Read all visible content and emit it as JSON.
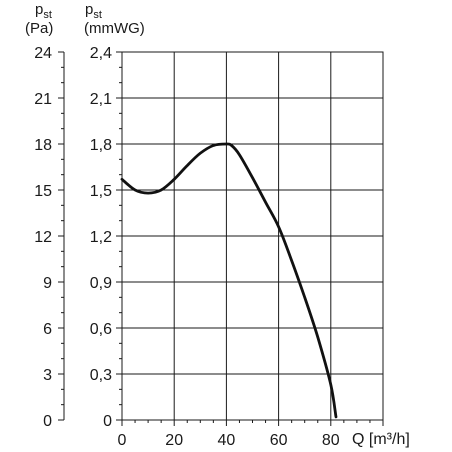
{
  "chart_data": {
    "type": "line",
    "x_axis": {
      "label": "Q [m³/h]",
      "range": [
        0,
        100
      ],
      "ticks": [
        0,
        20,
        40,
        60,
        80
      ],
      "tick_labels": [
        "0",
        "20",
        "40",
        "60",
        "80"
      ]
    },
    "y_axis_inner": {
      "label_main": "p",
      "label_sub": "st",
      "unit": "(mmWG)",
      "range": [
        0,
        2.4
      ],
      "ticks": [
        0,
        0.3,
        0.6,
        0.9,
        1.2,
        1.5,
        1.8,
        2.1,
        2.4
      ],
      "tick_labels": [
        "0",
        "0,3",
        "0,6",
        "0,9",
        "1,2",
        "1,5",
        "1,8",
        "2,1",
        "2,4"
      ]
    },
    "y_axis_outer": {
      "label_main": "p",
      "label_sub": "st",
      "unit": "(Pa)",
      "range": [
        0,
        24
      ],
      "tick_labels": [
        "0",
        "3",
        "6",
        "9",
        "12",
        "15",
        "18",
        "21",
        "24"
      ]
    },
    "grid": true,
    "series": [
      {
        "x": [
          0,
          5,
          10,
          15,
          20,
          25,
          30,
          35,
          40,
          42,
          45,
          50,
          55,
          60,
          65,
          70,
          75,
          80,
          82
        ],
        "y": [
          1.57,
          1.5,
          1.48,
          1.5,
          1.57,
          1.66,
          1.74,
          1.79,
          1.8,
          1.79,
          1.73,
          1.58,
          1.42,
          1.26,
          1.04,
          0.8,
          0.54,
          0.23,
          0.02
        ]
      }
    ]
  }
}
